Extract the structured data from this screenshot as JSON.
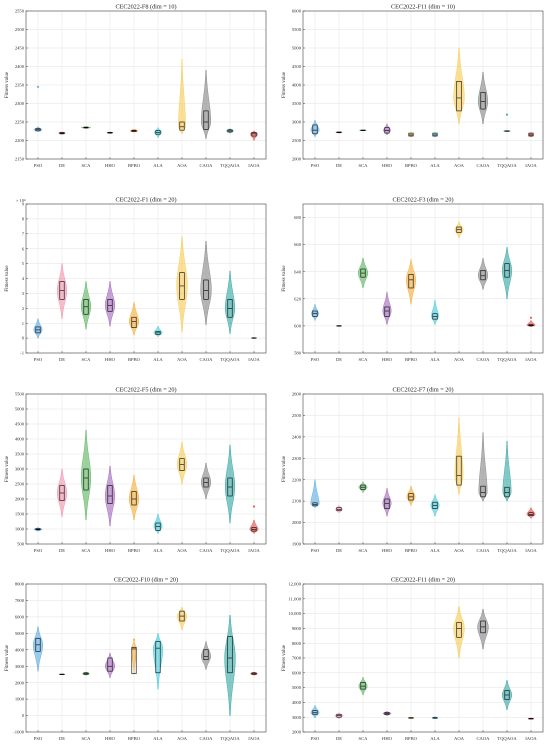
{
  "colors": {
    "PSO": "#4aa3e0",
    "DE": "#f08aa5",
    "SCA": "#4caf50",
    "HHO": "#9b59b6",
    "BPBO": "#f5a623",
    "ALA": "#31c6d8",
    "AOA": "#f7c744",
    "CAOA": "#7a7a7a",
    "TQQAOA": "#1f9e9a",
    "IAOA": "#e53935"
  },
  "chart_data": [
    {
      "type": "violin",
      "title": "CEC2022-F8 (dim = 10)",
      "ylabel": "Fitness value",
      "ylim": [
        2150,
        2550
      ],
      "yticks": [
        2150,
        2200,
        2250,
        2300,
        2350,
        2400,
        2450,
        2500,
        2550
      ],
      "ytick_labels": [
        "2150",
        "2200",
        "2250",
        "2300",
        "2350",
        "2400",
        "2450",
        "2500",
        "2550"
      ],
      "categories": [
        "PSO",
        "DE",
        "SCA",
        "HHO",
        "BPBO",
        "ALA",
        "AOA",
        "CAOA",
        "TQQAOA",
        "IAOA"
      ],
      "violins": [
        {
          "min": 2224,
          "max": 2237,
          "median": 2229,
          "q1": 2226,
          "q3": 2232,
          "width": 0.35
        },
        {
          "min": 2216,
          "max": 2224,
          "median": 2220,
          "q1": 2218,
          "q3": 2222,
          "width": 0.3
        },
        {
          "min": 2232,
          "max": 2238,
          "median": 2235,
          "q1": 2234,
          "q3": 2236,
          "width": 0.4
        },
        {
          "min": 2219,
          "max": 2223,
          "median": 2221,
          "q1": 2220,
          "q3": 2222,
          "width": 0.25
        },
        {
          "min": 2222,
          "max": 2230,
          "median": 2226,
          "q1": 2224,
          "q3": 2228,
          "width": 0.35
        },
        {
          "min": 2208,
          "max": 2235,
          "median": 2222,
          "q1": 2217,
          "q3": 2227,
          "width": 0.3
        },
        {
          "min": 2218,
          "max": 2420,
          "median": 2237,
          "q1": 2228,
          "q3": 2250,
          "width": 0.3
        },
        {
          "min": 2205,
          "max": 2390,
          "median": 2250,
          "q1": 2230,
          "q3": 2280,
          "width": 0.4
        },
        {
          "min": 2220,
          "max": 2232,
          "median": 2226,
          "q1": 2223,
          "q3": 2229,
          "width": 0.3
        },
        {
          "min": 2200,
          "max": 2226,
          "median": 2218,
          "q1": 2212,
          "q3": 2222,
          "width": 0.3
        }
      ],
      "outliers": [
        {
          "cat": 0,
          "y": 2345
        }
      ]
    },
    {
      "type": "violin",
      "title": "CEC2022-F11 (dim = 10)",
      "ylabel": "Fitness value",
      "ylim": [
        2000,
        6000
      ],
      "yticks": [
        2000,
        2500,
        3000,
        3500,
        4000,
        4500,
        5000,
        5500,
        6000
      ],
      "ytick_labels": [
        "2000",
        "2500",
        "3000",
        "3500",
        "4000",
        "4500",
        "5000",
        "5500",
        "6000"
      ],
      "categories": [
        "PSO",
        "DE",
        "SCA",
        "HHO",
        "BPBO",
        "ALA",
        "AOA",
        "CAOA",
        "TQQAOA",
        "IAOA"
      ],
      "violins": [
        {
          "min": 2600,
          "max": 3050,
          "median": 2780,
          "q1": 2680,
          "q3": 2920,
          "width": 0.35
        },
        {
          "min": 2700,
          "max": 2740,
          "median": 2720,
          "q1": 2710,
          "q3": 2730,
          "width": 0.3
        },
        {
          "min": 2760,
          "max": 2790,
          "median": 2775,
          "q1": 2768,
          "q3": 2782,
          "width": 0.3
        },
        {
          "min": 2650,
          "max": 2950,
          "median": 2770,
          "q1": 2700,
          "q3": 2850,
          "width": 0.3
        },
        {
          "min": 2600,
          "max": 2720,
          "median": 2650,
          "q1": 2620,
          "q3": 2700,
          "width": 0.2
        },
        {
          "min": 2600,
          "max": 2720,
          "median": 2650,
          "q1": 2620,
          "q3": 2700,
          "width": 0.2
        },
        {
          "min": 2950,
          "max": 5000,
          "median": 3650,
          "q1": 3300,
          "q3": 4100,
          "width": 0.45
        },
        {
          "min": 2950,
          "max": 4350,
          "median": 3550,
          "q1": 3350,
          "q3": 3800,
          "width": 0.4
        },
        {
          "min": 2740,
          "max": 2770,
          "median": 2755,
          "q1": 2748,
          "q3": 2762,
          "width": 0.3
        },
        {
          "min": 2600,
          "max": 2720,
          "median": 2650,
          "q1": 2620,
          "q3": 2700,
          "width": 0.2
        }
      ],
      "outliers": [
        {
          "cat": 8,
          "y": 3200
        }
      ]
    },
    {
      "type": "violin",
      "title": "CEC2022-F1 (dim = 20)",
      "ylabel": "Fitness value",
      "ylim": [
        -1,
        9
      ],
      "yticks": [
        -1,
        0,
        1,
        2,
        3,
        4,
        5,
        6,
        7,
        8,
        9
      ],
      "ytick_labels": [
        "-1",
        "0",
        "1",
        "2",
        "3",
        "4",
        "5",
        "6",
        "7",
        "8",
        "9"
      ],
      "exponent": "× 10⁴",
      "categories": [
        "PSO",
        "DE",
        "SCA",
        "HHO",
        "BPBO",
        "ALA",
        "AOA",
        "CAOA",
        "TQQAOA",
        "IAOA"
      ],
      "violins": [
        {
          "min": 0.0,
          "max": 1.3,
          "median": 0.55,
          "q1": 0.35,
          "q3": 0.75,
          "width": 0.35
        },
        {
          "min": 1.3,
          "max": 5.0,
          "median": 3.2,
          "q1": 2.6,
          "q3": 3.8,
          "width": 0.4
        },
        {
          "min": 0.6,
          "max": 3.8,
          "median": 2.1,
          "q1": 1.6,
          "q3": 2.6,
          "width": 0.4
        },
        {
          "min": 0.8,
          "max": 3.8,
          "median": 2.2,
          "q1": 1.8,
          "q3": 2.6,
          "width": 0.4
        },
        {
          "min": 0.2,
          "max": 2.4,
          "median": 1.1,
          "q1": 0.7,
          "q3": 1.4,
          "width": 0.4
        },
        {
          "min": 0.1,
          "max": 0.8,
          "median": 0.35,
          "q1": 0.25,
          "q3": 0.45,
          "width": 0.35
        },
        {
          "min": 0.4,
          "max": 6.8,
          "median": 3.5,
          "q1": 2.6,
          "q3": 4.4,
          "width": 0.45
        },
        {
          "min": 0.9,
          "max": 6.5,
          "median": 3.2,
          "q1": 2.6,
          "q3": 3.9,
          "width": 0.45
        },
        {
          "min": 0.3,
          "max": 4.5,
          "median": 2.0,
          "q1": 1.4,
          "q3": 2.6,
          "width": 0.4
        },
        {
          "min": -0.02,
          "max": 0.05,
          "median": 0.0,
          "q1": -0.01,
          "q3": 0.02,
          "width": 0.2
        }
      ],
      "outliers": []
    },
    {
      "type": "violin",
      "title": "CEC2022-F3 (dim = 20)",
      "ylabel": "Fitness value",
      "ylim": [
        580,
        690
      ],
      "yticks": [
        580,
        600,
        620,
        640,
        660,
        680
      ],
      "ytick_labels": [
        "580",
        "600",
        "620",
        "640",
        "660",
        "680"
      ],
      "categories": [
        "PSO",
        "DE",
        "SCA",
        "HHO",
        "BPBO",
        "ALA",
        "AOA",
        "CAOA",
        "TQQAOA",
        "IAOA"
      ],
      "violins": [
        {
          "min": 604,
          "max": 616,
          "median": 609,
          "q1": 607,
          "q3": 611,
          "width": 0.3
        },
        {
          "min": 599.5,
          "max": 600.5,
          "median": 600,
          "q1": 599.8,
          "q3": 600.2,
          "width": 0.2
        },
        {
          "min": 628,
          "max": 650,
          "median": 639,
          "q1": 636,
          "q3": 642,
          "width": 0.4
        },
        {
          "min": 601,
          "max": 625,
          "median": 611,
          "q1": 607,
          "q3": 614,
          "width": 0.35
        },
        {
          "min": 616,
          "max": 649,
          "median": 634,
          "q1": 628,
          "q3": 638,
          "width": 0.4
        },
        {
          "min": 601,
          "max": 619,
          "median": 607,
          "q1": 605,
          "q3": 609,
          "width": 0.3
        },
        {
          "min": 665,
          "max": 677,
          "median": 671,
          "q1": 669,
          "q3": 673,
          "width": 0.35
        },
        {
          "min": 627,
          "max": 650,
          "median": 637,
          "q1": 634,
          "q3": 641,
          "width": 0.4
        },
        {
          "min": 620,
          "max": 658,
          "median": 641,
          "q1": 636,
          "q3": 646,
          "width": 0.4
        },
        {
          "min": 599.5,
          "max": 604,
          "median": 600.5,
          "q1": 600,
          "q3": 601,
          "width": 0.35
        }
      ],
      "outliers": [
        {
          "cat": 9,
          "y": 606
        }
      ]
    },
    {
      "type": "violin",
      "title": "CEC2022-F5 (dim = 20)",
      "ylabel": "Fitness value",
      "ylim": [
        500,
        5500
      ],
      "yticks": [
        500,
        1000,
        1500,
        2000,
        2500,
        3000,
        3500,
        4000,
        4500,
        5000,
        5500
      ],
      "ytick_labels": [
        "500",
        "1000",
        "1500",
        "2000",
        "2500",
        "3000",
        "3500",
        "4000",
        "4500",
        "5000",
        "5500"
      ],
      "categories": [
        "PSO",
        "DE",
        "SCA",
        "HHO",
        "BPBO",
        "ALA",
        "AOA",
        "CAOA",
        "TQQAOA",
        "IAOA"
      ],
      "violins": [
        {
          "min": 930,
          "max": 1050,
          "median": 990,
          "q1": 970,
          "q3": 1010,
          "width": 0.35
        },
        {
          "min": 1400,
          "max": 3000,
          "median": 2200,
          "q1": 1950,
          "q3": 2450,
          "width": 0.4
        },
        {
          "min": 1300,
          "max": 4300,
          "median": 2700,
          "q1": 2300,
          "q3": 3000,
          "width": 0.4
        },
        {
          "min": 1100,
          "max": 3100,
          "median": 2100,
          "q1": 1850,
          "q3": 2450,
          "width": 0.4
        },
        {
          "min": 1300,
          "max": 2800,
          "median": 2000,
          "q1": 1800,
          "q3": 2250,
          "width": 0.4
        },
        {
          "min": 850,
          "max": 1500,
          "median": 1080,
          "q1": 950,
          "q3": 1200,
          "width": 0.35
        },
        {
          "min": 2500,
          "max": 3900,
          "median": 3150,
          "q1": 2950,
          "q3": 3350,
          "width": 0.4
        },
        {
          "min": 2000,
          "max": 3200,
          "median": 2550,
          "q1": 2400,
          "q3": 2700,
          "width": 0.4
        },
        {
          "min": 1200,
          "max": 3800,
          "median": 2400,
          "q1": 2100,
          "q3": 2700,
          "width": 0.4
        },
        {
          "min": 850,
          "max": 1300,
          "median": 980,
          "q1": 930,
          "q3": 1050,
          "width": 0.35
        }
      ],
      "outliers": [
        {
          "cat": 9,
          "y": 1750
        }
      ]
    },
    {
      "type": "violin",
      "title": "CEC2022-F7 (dim = 20)",
      "ylabel": "Fitness value",
      "ylim": [
        1900,
        2600
      ],
      "yticks": [
        1900,
        2000,
        2100,
        2200,
        2300,
        2400,
        2500,
        2600
      ],
      "ytick_labels": [
        "1900",
        "2000",
        "2100",
        "2200",
        "2300",
        "2400",
        "2500",
        "2600"
      ],
      "categories": [
        "PSO",
        "DE",
        "SCA",
        "HHO",
        "BPBO",
        "ALA",
        "AOA",
        "CAOA",
        "TQQAOA",
        "IAOA"
      ],
      "violins": [
        {
          "min": 2070,
          "max": 2200,
          "median": 2085,
          "q1": 2078,
          "q3": 2092,
          "width": 0.35
        },
        {
          "min": 2045,
          "max": 2080,
          "median": 2062,
          "q1": 2055,
          "q3": 2070,
          "width": 0.3
        },
        {
          "min": 2140,
          "max": 2190,
          "median": 2165,
          "q1": 2155,
          "q3": 2175,
          "width": 0.35
        },
        {
          "min": 2030,
          "max": 2160,
          "median": 2090,
          "q1": 2065,
          "q3": 2110,
          "width": 0.35
        },
        {
          "min": 2080,
          "max": 2170,
          "median": 2120,
          "q1": 2105,
          "q3": 2135,
          "width": 0.35
        },
        {
          "min": 2030,
          "max": 2130,
          "median": 2080,
          "q1": 2065,
          "q3": 2095,
          "width": 0.35
        },
        {
          "min": 2130,
          "max": 2490,
          "median": 2220,
          "q1": 2175,
          "q3": 2310,
          "width": 0.35
        },
        {
          "min": 2100,
          "max": 2420,
          "median": 2140,
          "q1": 2120,
          "q3": 2170,
          "width": 0.35
        },
        {
          "min": 2100,
          "max": 2380,
          "median": 2140,
          "q1": 2120,
          "q3": 2165,
          "width": 0.35
        },
        {
          "min": 2020,
          "max": 2070,
          "median": 2038,
          "q1": 2032,
          "q3": 2046,
          "width": 0.35
        }
      ],
      "outliers": []
    },
    {
      "type": "violin",
      "title": "CEC2022-F10 (dim = 20)",
      "ylabel": "Fitness value",
      "ylim": [
        -1000,
        8000
      ],
      "yticks": [
        -1000,
        0,
        1000,
        2000,
        3000,
        4000,
        5000,
        6000,
        7000,
        8000
      ],
      "ytick_labels": [
        "-1000",
        "0",
        "1000",
        "2000",
        "3000",
        "4000",
        "5000",
        "6000",
        "7000",
        "8000"
      ],
      "categories": [
        "PSO",
        "DE",
        "SCA",
        "HHO",
        "BPBO",
        "ALA",
        "AOA",
        "CAOA",
        "TQQAOA",
        "IAOA"
      ],
      "violins": [
        {
          "min": 2700,
          "max": 5400,
          "median": 4300,
          "q1": 3900,
          "q3": 4700,
          "width": 0.4
        },
        {
          "min": 2490,
          "max": 2530,
          "median": 2510,
          "q1": 2500,
          "q3": 2520,
          "width": 0.25
        },
        {
          "min": 2450,
          "max": 2650,
          "median": 2550,
          "q1": 2500,
          "q3": 2600,
          "width": 0.3
        },
        {
          "min": 2300,
          "max": 3800,
          "median": 3000,
          "q1": 2700,
          "q3": 3500,
          "width": 0.4
        },
        {
          "min": 2500,
          "max": 4600,
          "median": 4050,
          "q1": 2550,
          "q3": 4150,
          "width": 0.2
        },
        {
          "min": 1600,
          "max": 5000,
          "median": 4100,
          "q1": 2600,
          "q3": 4500,
          "width": 0.4
        },
        {
          "min": 5200,
          "max": 6600,
          "median": 6050,
          "q1": 5750,
          "q3": 6350,
          "width": 0.4
        },
        {
          "min": 2800,
          "max": 4500,
          "median": 3600,
          "q1": 3400,
          "q3": 4000,
          "width": 0.4
        },
        {
          "min": 0,
          "max": 6100,
          "median": 3500,
          "q1": 2600,
          "q3": 4800,
          "width": 0.45
        },
        {
          "min": 2450,
          "max": 2650,
          "median": 2550,
          "q1": 2500,
          "q3": 2600,
          "width": 0.3
        }
      ],
      "outliers": [
        {
          "cat": 4,
          "y": 4620
        }
      ]
    },
    {
      "type": "violin",
      "title": "CEC2022-F11 (dim = 20)",
      "ylabel": "Fitness value",
      "ylim": [
        2000,
        12000
      ],
      "yticks": [
        2000,
        3000,
        4000,
        5000,
        6000,
        7000,
        8000,
        9000,
        10000,
        11000,
        12000
      ],
      "ytick_labels": [
        "2000",
        "3000",
        "4000",
        "5000",
        "6000",
        "7000",
        "8000",
        "9000",
        "10,000",
        "11,000",
        "12,000"
      ],
      "categories": [
        "PSO",
        "DE",
        "SCA",
        "HHO",
        "BPBO",
        "ALA",
        "AOA",
        "CAOA",
        "TQQAOA",
        "IAOA"
      ],
      "violins": [
        {
          "min": 2950,
          "max": 3800,
          "median": 3300,
          "q1": 3200,
          "q3": 3450,
          "width": 0.35
        },
        {
          "min": 2900,
          "max": 3300,
          "median": 3100,
          "q1": 3000,
          "q3": 3200,
          "width": 0.35
        },
        {
          "min": 4500,
          "max": 5700,
          "median": 5100,
          "q1": 4900,
          "q3": 5350,
          "width": 0.35
        },
        {
          "min": 3100,
          "max": 3400,
          "median": 3250,
          "q1": 3180,
          "q3": 3320,
          "width": 0.35
        },
        {
          "min": 2900,
          "max": 3000,
          "median": 2950,
          "q1": 2930,
          "q3": 2970,
          "width": 0.25
        },
        {
          "min": 2900,
          "max": 3050,
          "median": 2950,
          "q1": 2930,
          "q3": 2970,
          "width": 0.25
        },
        {
          "min": 7000,
          "max": 10500,
          "median": 9000,
          "q1": 8400,
          "q3": 9400,
          "width": 0.45
        },
        {
          "min": 7600,
          "max": 10300,
          "median": 9100,
          "q1": 8700,
          "q3": 9500,
          "width": 0.45
        },
        {
          "min": 3500,
          "max": 5500,
          "median": 4500,
          "q1": 4200,
          "q3": 4800,
          "width": 0.4
        },
        {
          "min": 2850,
          "max": 2950,
          "median": 2900,
          "q1": 2880,
          "q3": 2920,
          "width": 0.25
        }
      ],
      "outliers": []
    }
  ]
}
